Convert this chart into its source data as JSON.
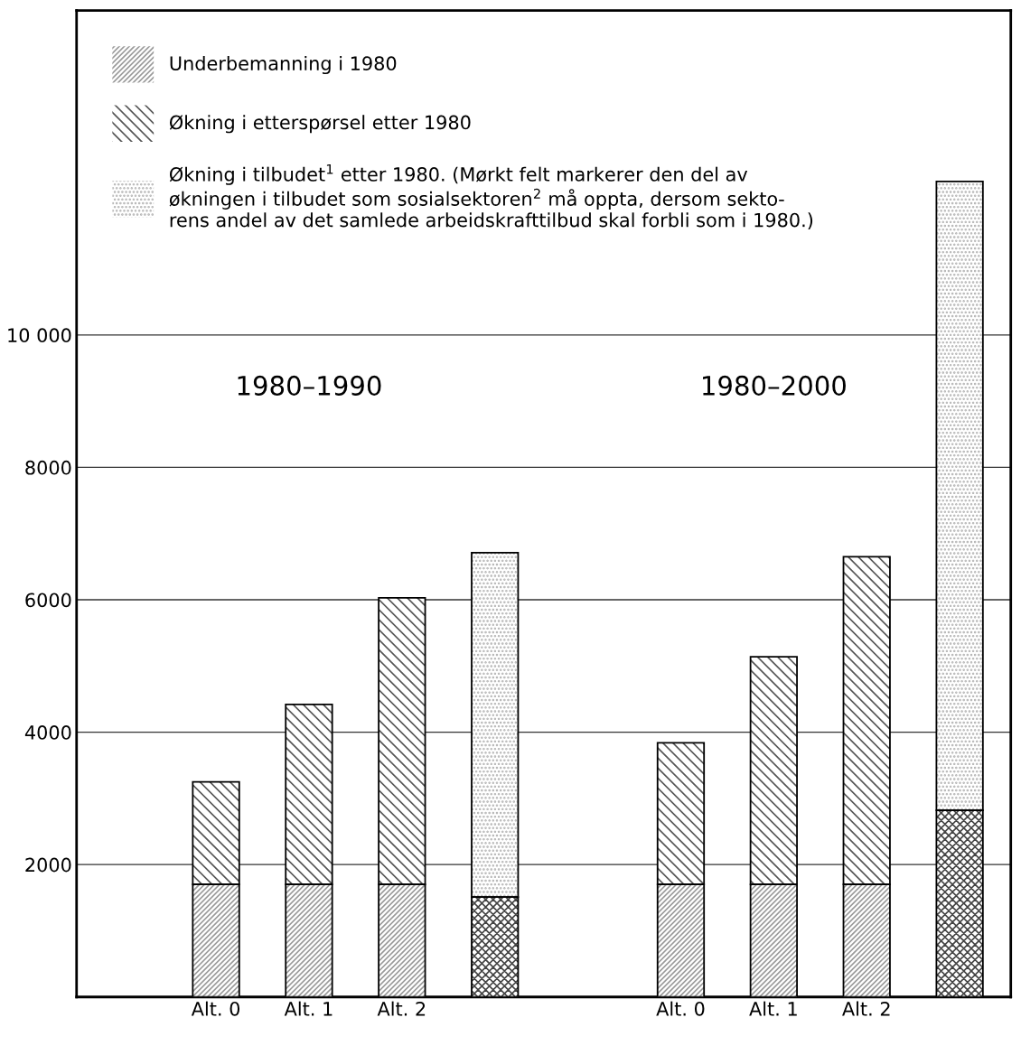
{
  "chart_data": {
    "type": "bar",
    "stacked": true,
    "categories": [
      "Alt. 0",
      "Alt. 1",
      "Alt. 2",
      null,
      null,
      "Alt. 0",
      "Alt. 1",
      "Alt. 2",
      null
    ],
    "series": [
      {
        "name": "Underbemanning i 1980",
        "color": "#9a9a9a",
        "values": [
          1700,
          1700,
          1700,
          null,
          null,
          1700,
          1700,
          1700,
          null
        ]
      },
      {
        "name": "Økning i etterspørsel etter 1980",
        "color": "#555555",
        "values": [
          1550,
          2720,
          4330,
          null,
          null,
          2140,
          3440,
          4950,
          null
        ]
      },
      {
        "color": "#444444",
        "values": [
          null,
          null,
          null,
          1510,
          null,
          null,
          null,
          null,
          2820
        ]
      },
      {
        "name": "Økning i tilbudet$^{1}$ etter 1980. (Mørkt felt markerer den del av\nøkningen i tilbudet som sosialsektoren$^{2}$ må oppta, dersom sekto-\nrens andel av det samlede arbeidskrafttilbud skal forbli som i 1980.)",
        "color": "#b0b0b0",
        "values": [
          null,
          null,
          null,
          5200,
          null,
          null,
          null,
          null,
          9500
        ]
      }
    ],
    "ylim": [
      0,
      14900
    ],
    "yticks": [
      2000,
      4000,
      6000,
      8000,
      {
        "value": 10000,
        "label": "10 000"
      }
    ],
    "grid": "y",
    "legend": "top left",
    "annotations": [
      "1980–1990",
      "1980–2000"
    ]
  }
}
